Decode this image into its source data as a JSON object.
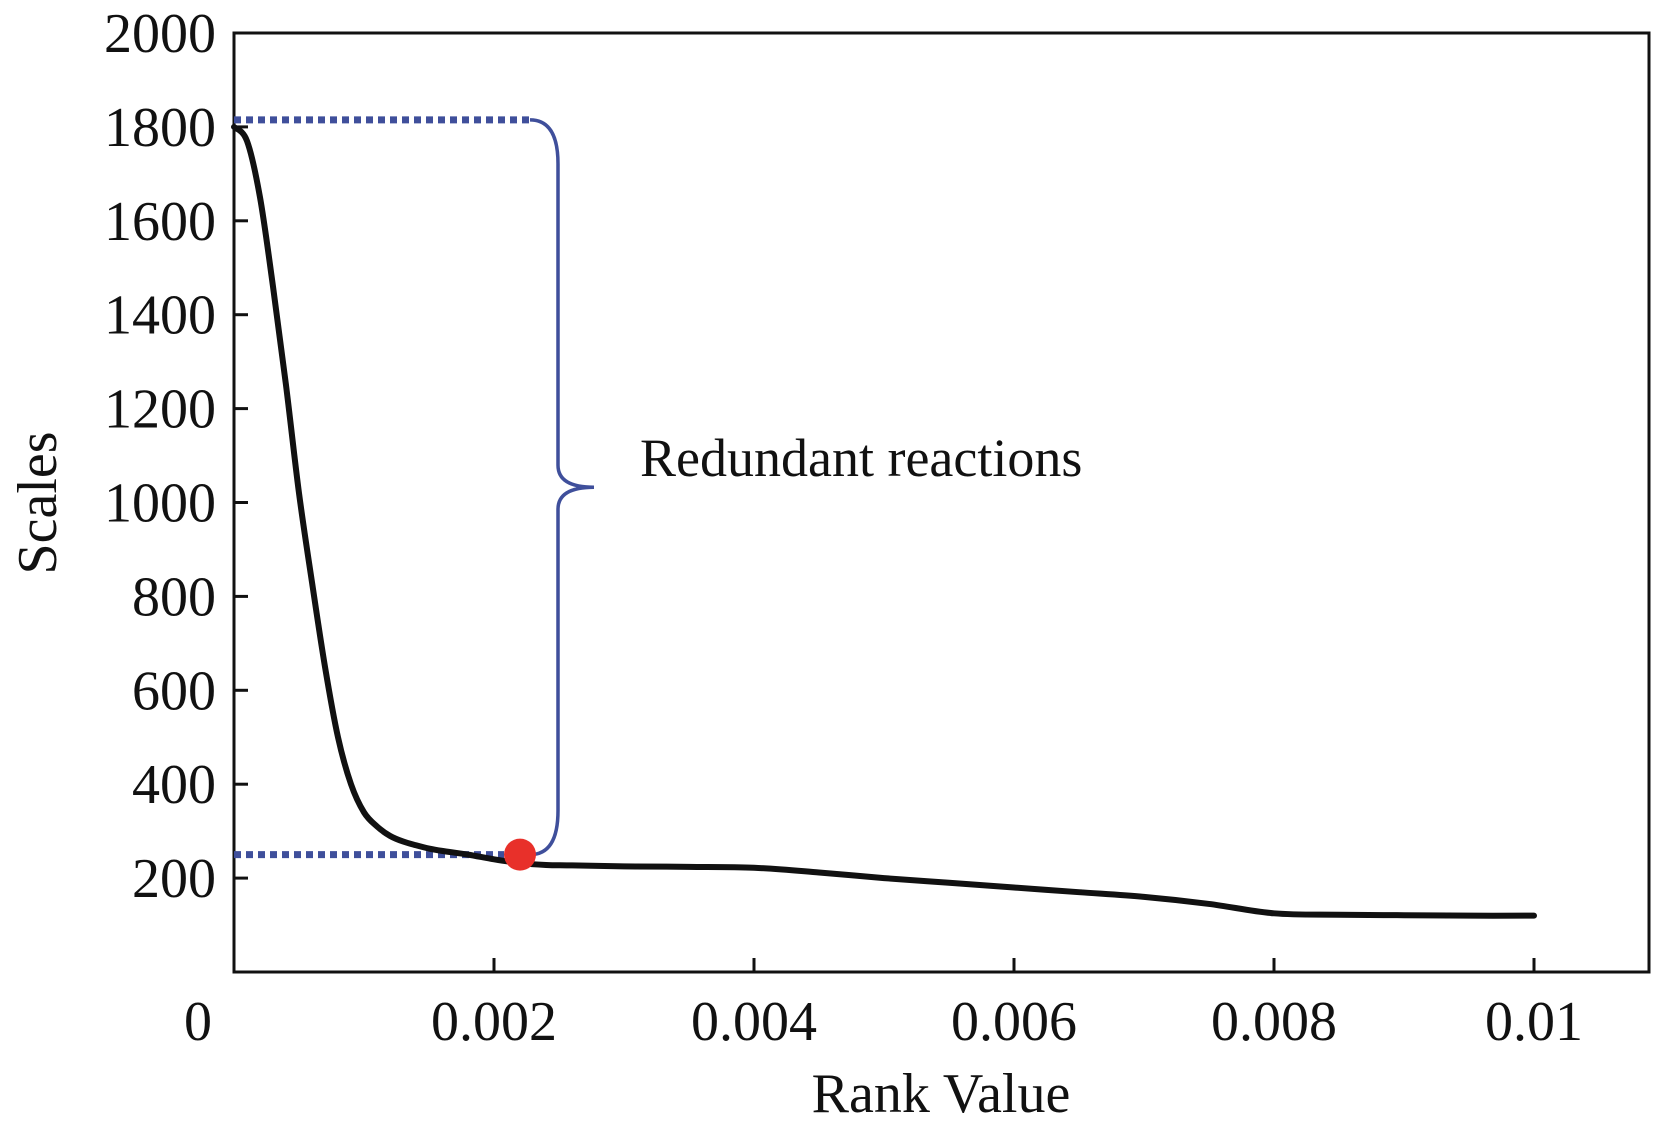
{
  "chart_data": {
    "type": "line",
    "xlabel": "Rank Value",
    "ylabel": "Scales",
    "xlim": [
      0,
      0.011
    ],
    "ylim": [
      0,
      2000
    ],
    "x_ticks": [
      0,
      0.002,
      0.004,
      0.006,
      0.008,
      0.01
    ],
    "x_tick_labels": [
      "0",
      "0.002",
      "0.004",
      "0.006",
      "0.008",
      "0.01"
    ],
    "y_ticks": [
      200,
      400,
      600,
      800,
      1000,
      1200,
      1400,
      1600,
      1800,
      2000
    ],
    "y_tick_labels": [
      "200",
      "400",
      "600",
      "800",
      "1000",
      "1200",
      "1400",
      "1600",
      "1800",
      "2000"
    ],
    "grid": false,
    "series": [
      {
        "color": "#111111",
        "x": [
          0,
          0.0001,
          0.0002,
          0.0003,
          0.0004,
          0.0005,
          0.0006,
          0.0007,
          0.0008,
          0.0009,
          0.001,
          0.0011,
          0.0012,
          0.0013,
          0.0014,
          0.0015,
          0.0016,
          0.0018,
          0.002,
          0.0022,
          0.0024,
          0.0026,
          0.003,
          0.0035,
          0.004,
          0.0045,
          0.005,
          0.0055,
          0.006,
          0.0065,
          0.007,
          0.0075,
          0.008,
          0.0085,
          0.009,
          0.0095,
          0.01
        ],
        "y": [
          1800,
          1770,
          1650,
          1460,
          1250,
          1020,
          830,
          650,
          500,
          400,
          340,
          310,
          290,
          278,
          270,
          263,
          258,
          250,
          240,
          232,
          228,
          227,
          225,
          224,
          222,
          212,
          200,
          190,
          180,
          170,
          160,
          145,
          125,
          122,
          121,
          120,
          120
        ]
      }
    ],
    "highlight_point": {
      "x": 0.0022,
      "y": 250,
      "color": "#e8302a"
    },
    "reference_levels": {
      "upper": 1815,
      "lower": 250,
      "color": "#3f4f9b"
    },
    "annotation": {
      "text": "Redundant reactions",
      "color": "#3f4f9b"
    }
  }
}
